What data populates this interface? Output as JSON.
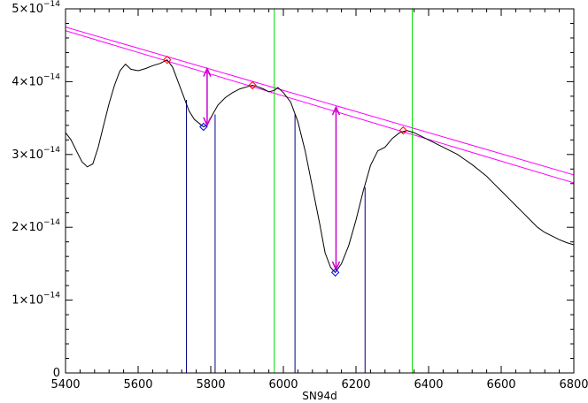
{
  "chart_data": {
    "type": "line",
    "title": "",
    "xlabel": "SN94d",
    "ylabel": "",
    "xlim": [
      5400,
      6800
    ],
    "ylim": [
      0,
      5e-14
    ],
    "grid": false,
    "legend": "none",
    "x_ticks": [
      5400,
      5600,
      5800,
      6000,
      6200,
      6400,
      6600,
      6800
    ],
    "y_ticks": [
      {
        "value": 0,
        "mant": "0",
        "exp": ""
      },
      {
        "value": 1e-14,
        "mant": "1×10",
        "exp": "−14"
      },
      {
        "value": 2e-14,
        "mant": "2×10",
        "exp": "−14"
      },
      {
        "value": 3e-14,
        "mant": "3×10",
        "exp": "−14"
      },
      {
        "value": 4e-14,
        "mant": "4×10",
        "exp": "−14"
      },
      {
        "value": 5e-14,
        "mant": "5×10",
        "exp": "−14"
      }
    ],
    "spectrum": {
      "color": "#000000",
      "points": [
        [
          5400,
          3.3e-14
        ],
        [
          5415,
          3.2e-14
        ],
        [
          5430,
          3.05e-14
        ],
        [
          5445,
          2.9e-14
        ],
        [
          5460,
          2.83e-14
        ],
        [
          5475,
          2.87e-14
        ],
        [
          5490,
          3.1e-14
        ],
        [
          5505,
          3.4e-14
        ],
        [
          5520,
          3.7e-14
        ],
        [
          5535,
          3.95e-14
        ],
        [
          5550,
          4.15e-14
        ],
        [
          5565,
          4.24e-14
        ],
        [
          5580,
          4.17e-14
        ],
        [
          5600,
          4.15e-14
        ],
        [
          5620,
          4.18e-14
        ],
        [
          5640,
          4.22e-14
        ],
        [
          5660,
          4.25e-14
        ],
        [
          5680,
          4.3e-14
        ],
        [
          5695,
          4.2e-14
        ],
        [
          5710,
          4e-14
        ],
        [
          5725,
          3.8e-14
        ],
        [
          5740,
          3.6e-14
        ],
        [
          5755,
          3.48e-14
        ],
        [
          5770,
          3.42e-14
        ],
        [
          5780,
          3.38e-14
        ],
        [
          5790,
          3.4e-14
        ],
        [
          5805,
          3.55e-14
        ],
        [
          5820,
          3.68e-14
        ],
        [
          5840,
          3.78e-14
        ],
        [
          5860,
          3.85e-14
        ],
        [
          5880,
          3.9e-14
        ],
        [
          5900,
          3.93e-14
        ],
        [
          5915,
          3.95e-14
        ],
        [
          5930,
          3.93e-14
        ],
        [
          5945,
          3.9e-14
        ],
        [
          5960,
          3.86e-14
        ],
        [
          5975,
          3.88e-14
        ],
        [
          5985,
          3.92e-14
        ],
        [
          6000,
          3.85e-14
        ],
        [
          6020,
          3.72e-14
        ],
        [
          6040,
          3.45e-14
        ],
        [
          6060,
          3.05e-14
        ],
        [
          6080,
          2.55e-14
        ],
        [
          6100,
          2.05e-14
        ],
        [
          6115,
          1.65e-14
        ],
        [
          6130,
          1.45e-14
        ],
        [
          6143,
          1.38e-14
        ],
        [
          6160,
          1.5e-14
        ],
        [
          6180,
          1.75e-14
        ],
        [
          6200,
          2.1e-14
        ],
        [
          6220,
          2.5e-14
        ],
        [
          6240,
          2.85e-14
        ],
        [
          6260,
          3.05e-14
        ],
        [
          6280,
          3.1e-14
        ],
        [
          6300,
          3.22e-14
        ],
        [
          6320,
          3.3e-14
        ],
        [
          6340,
          3.33e-14
        ],
        [
          6360,
          3.3e-14
        ],
        [
          6380,
          3.25e-14
        ],
        [
          6400,
          3.2e-14
        ],
        [
          6420,
          3.15e-14
        ],
        [
          6440,
          3.1e-14
        ],
        [
          6460,
          3.05e-14
        ],
        [
          6480,
          3e-14
        ],
        [
          6500,
          2.93e-14
        ],
        [
          6520,
          2.86e-14
        ],
        [
          6540,
          2.78e-14
        ],
        [
          6560,
          2.7e-14
        ],
        [
          6580,
          2.6e-14
        ],
        [
          6600,
          2.5e-14
        ],
        [
          6620,
          2.4e-14
        ],
        [
          6640,
          2.3e-14
        ],
        [
          6660,
          2.2e-14
        ],
        [
          6680,
          2.1e-14
        ],
        [
          6700,
          2e-14
        ],
        [
          6720,
          1.93e-14
        ],
        [
          6740,
          1.88e-14
        ],
        [
          6760,
          1.83e-14
        ],
        [
          6780,
          1.79e-14
        ],
        [
          6800,
          1.76e-14
        ]
      ]
    },
    "continuum_lines": {
      "color": "#ff00ff",
      "lines": [
        [
          [
            5400,
            4.75e-14
          ],
          [
            6800,
            2.72e-14
          ]
        ],
        [
          [
            5400,
            4.7e-14
          ],
          [
            6800,
            2.61e-14
          ]
        ]
      ]
    },
    "green_lines": {
      "color": "#00dd00",
      "x": [
        5975,
        6355
      ]
    },
    "blue_lines": {
      "color": "#000080",
      "segments": [
        {
          "x": 5733,
          "y": 3.75e-14
        },
        {
          "x": 5812,
          "y": 3.55e-14
        },
        {
          "x": 6032,
          "y": 3.55e-14
        },
        {
          "x": 6225,
          "y": 2.55e-14
        }
      ]
    },
    "red_markers": {
      "color": "#ff0000",
      "points": [
        [
          5680,
          4.3e-14
        ],
        [
          5915,
          3.95e-14
        ],
        [
          6330,
          3.33e-14
        ]
      ]
    },
    "blue_markers": {
      "color": "#0000ff",
      "points": [
        [
          5780,
          3.38e-14
        ],
        [
          6143,
          1.38e-14
        ]
      ]
    },
    "depth_arrows": {
      "color": "#cc00cc",
      "arrows": [
        {
          "x": 5790,
          "y_top": 4.18e-14,
          "y_bottom": 3.4e-14
        },
        {
          "x": 6145,
          "y_top": 3.65e-14,
          "y_bottom": 1.42e-14
        }
      ]
    }
  }
}
